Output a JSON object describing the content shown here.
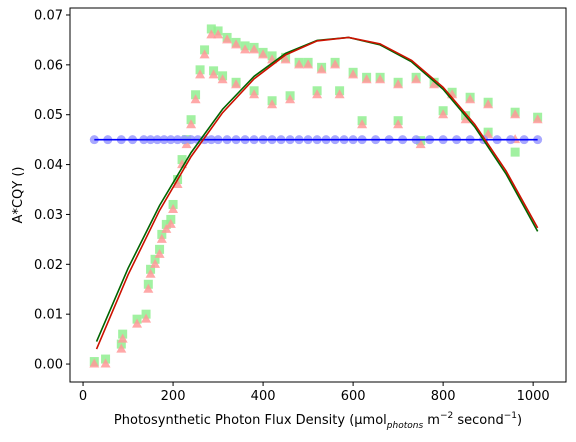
{
  "chart_data": {
    "type": "scatter",
    "xlabel": [
      "Photosynthetic Photon Flux Density (μmol",
      "photons",
      " m",
      "−2",
      " second",
      "−1",
      ")"
    ],
    "ylabel": "A*CQY ()",
    "xlim": [
      -29,
      1073
    ],
    "ylim": [
      -0.0036,
      0.0714
    ],
    "xticks": [
      0,
      200,
      400,
      600,
      800,
      1000
    ],
    "yticks": [
      {
        "value": 0,
        "label": "0.00"
      },
      {
        "value": 0.01,
        "label": "0.01"
      },
      {
        "value": 0.02,
        "label": "0.02"
      },
      {
        "value": 0.03,
        "label": "0.03"
      },
      {
        "value": 0.04,
        "label": "0.04"
      },
      {
        "value": 0.05,
        "label": "0.05"
      },
      {
        "value": 0.06,
        "label": "0.06"
      },
      {
        "value": 0.07,
        "label": "0.07"
      }
    ],
    "series": [
      {
        "color": "#90ee90",
        "marker": "square",
        "x": [
          25,
          50,
          85,
          88,
          120,
          140,
          145,
          150,
          160,
          170,
          175,
          185,
          195,
          200,
          210,
          220,
          230,
          240,
          250,
          260,
          270,
          285,
          300,
          320,
          340,
          360,
          380,
          400,
          420,
          450,
          480,
          500,
          530,
          560,
          600,
          630,
          660,
          700,
          740,
          780,
          820,
          860,
          900,
          960,
          1010,
          290,
          310,
          340,
          380,
          420,
          460,
          520,
          570,
          620,
          700,
          750,
          800,
          850,
          900,
          960
        ],
        "values": [
          0.0005,
          0.001,
          0.004,
          0.006,
          0.009,
          0.01,
          0.016,
          0.019,
          0.021,
          0.023,
          0.026,
          0.028,
          0.029,
          0.032,
          0.037,
          0.041,
          0.045,
          0.049,
          0.054,
          0.059,
          0.063,
          0.0672,
          0.0668,
          0.0655,
          0.0645,
          0.0638,
          0.0635,
          0.0625,
          0.0618,
          0.0615,
          0.0605,
          0.0605,
          0.0595,
          0.0605,
          0.0585,
          0.0575,
          0.0575,
          0.0565,
          0.0575,
          0.0565,
          0.0545,
          0.0535,
          0.0525,
          0.0505,
          0.0495,
          0.0588,
          0.0578,
          0.0565,
          0.0548,
          0.0528,
          0.0538,
          0.0548,
          0.0548,
          0.0488,
          0.0488,
          0.0448,
          0.0508,
          0.0498,
          0.0465,
          0.0425
        ]
      },
      {
        "color": "#ff9999",
        "marker": "triangle",
        "x": [
          25,
          50,
          85,
          88,
          120,
          140,
          145,
          150,
          160,
          170,
          175,
          185,
          195,
          200,
          210,
          220,
          230,
          240,
          250,
          260,
          270,
          285,
          300,
          320,
          340,
          360,
          380,
          400,
          420,
          450,
          480,
          500,
          530,
          560,
          600,
          630,
          660,
          700,
          740,
          780,
          820,
          860,
          900,
          960,
          1010,
          290,
          310,
          340,
          380,
          420,
          460,
          520,
          570,
          620,
          700,
          750,
          800,
          850,
          900,
          960
        ],
        "values": [
          0,
          0,
          0.003,
          0.005,
          0.008,
          0.009,
          0.015,
          0.018,
          0.02,
          0.022,
          0.025,
          0.027,
          0.028,
          0.031,
          0.036,
          0.04,
          0.044,
          0.048,
          0.053,
          0.058,
          0.062,
          0.066,
          0.066,
          0.065,
          0.064,
          0.063,
          0.063,
          0.062,
          0.061,
          0.061,
          0.06,
          0.06,
          0.059,
          0.06,
          0.058,
          0.057,
          0.057,
          0.056,
          0.057,
          0.056,
          0.054,
          0.053,
          0.052,
          0.05,
          0.049,
          0.058,
          0.057,
          0.056,
          0.054,
          0.052,
          0.053,
          0.054,
          0.054,
          0.048,
          0.048,
          0.044,
          0.05,
          0.049,
          0.046,
          0.045
        ]
      },
      {
        "color": "#9999ff",
        "marker": "circle",
        "x": [
          25,
          55,
          85,
          110,
          135,
          150,
          165,
          180,
          195,
          210,
          225,
          240,
          255,
          270,
          285,
          300,
          320,
          340,
          360,
          380,
          400,
          420,
          440,
          460,
          480,
          500,
          520,
          540,
          560,
          580,
          600,
          620,
          650,
          680,
          710,
          740,
          770,
          800,
          830,
          860,
          890,
          920,
          950,
          980,
          1010
        ],
        "values": [
          0.045,
          0.045,
          0.045,
          0.045,
          0.045,
          0.045,
          0.045,
          0.045,
          0.045,
          0.045,
          0.045,
          0.045,
          0.045,
          0.045,
          0.045,
          0.045,
          0.045,
          0.045,
          0.045,
          0.045,
          0.045,
          0.045,
          0.045,
          0.045,
          0.045,
          0.045,
          0.045,
          0.045,
          0.045,
          0.045,
          0.045,
          0.045,
          0.045,
          0.045,
          0.045,
          0.045,
          0.045,
          0.045,
          0.045,
          0.045,
          0.045,
          0.045,
          0.045,
          0.045,
          0.045
        ]
      },
      {
        "color": "#0000ff",
        "marker": "line",
        "x": [
          25,
          1010
        ],
        "values": [
          0.045,
          0.045
        ]
      },
      {
        "color": "#006400",
        "marker": "line",
        "x": [
          30,
          100,
          170,
          240,
          310,
          380,
          450,
          520,
          590,
          660,
          730,
          800,
          870,
          940,
          1010
        ],
        "values": [
          0.0045,
          0.0192,
          0.0318,
          0.0424,
          0.0511,
          0.0577,
          0.0623,
          0.0649,
          0.0655,
          0.064,
          0.0606,
          0.0551,
          0.0476,
          0.0381,
          0.0266
        ]
      },
      {
        "color": "#cc1100",
        "marker": "line",
        "x": [
          30,
          100,
          170,
          240,
          310,
          380,
          450,
          520,
          590,
          660,
          730,
          800,
          870,
          940,
          1010
        ],
        "values": [
          0.003,
          0.0179,
          0.0308,
          0.0416,
          0.0504,
          0.0572,
          0.062,
          0.0648,
          0.0655,
          0.0642,
          0.0609,
          0.0555,
          0.0481,
          0.0387,
          0.0273
        ]
      }
    ]
  }
}
